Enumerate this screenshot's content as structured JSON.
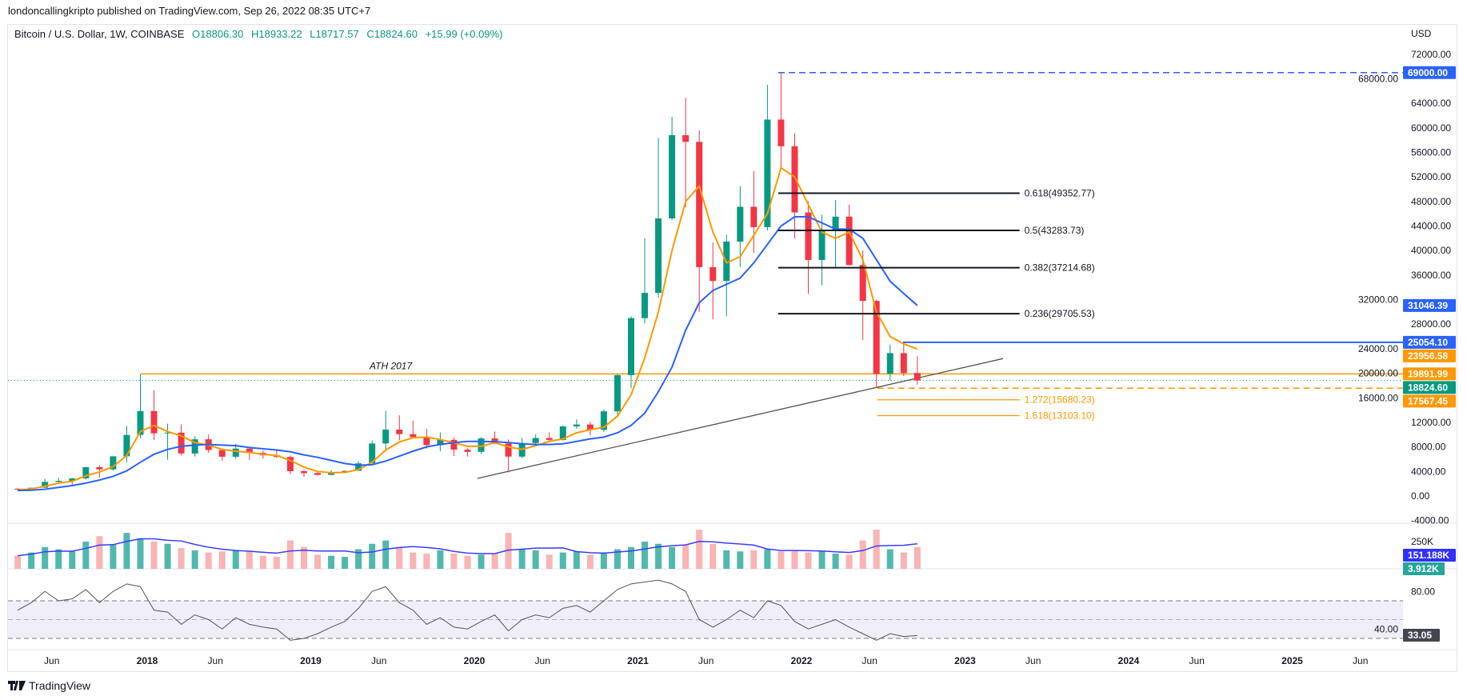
{
  "header": {
    "publisher_line": "londoncallingkripto published on TradingView.com, Sep 26, 2022 08:35 UTC+7",
    "symbol": "Bitcoin / U.S. Dollar, 1W, COINBASE",
    "open": "O18806.30",
    "high": "H18933.22",
    "low": "L18717.57",
    "close": "C18824.60",
    "change": "+15.99 (+0.09%)"
  },
  "footer": {
    "brand": "TradingView"
  },
  "colors": {
    "up": "#089981",
    "down": "#f23645",
    "ema_fast": "#ff9800",
    "ema_slow": "#2962ff",
    "volume_ma": "#3b3bff",
    "rsi": "#555555",
    "rsi_band": "#f0eef8",
    "fib": "#131722"
  },
  "chart_data": {
    "type": "candlestick",
    "currency": "USD",
    "y_ticks": [
      "72000.00",
      "68000.00",
      "64000.00",
      "60000.00",
      "56000.00",
      "52000.00",
      "48000.00",
      "44000.00",
      "40000.00",
      "36000.00",
      "32000.00",
      "28000.00",
      "24000.00",
      "20000.00",
      "16000.00",
      "12000.00",
      "8000.00",
      "4000.00",
      "0.00",
      "-4000.00"
    ],
    "ylim": [
      -4000,
      72000
    ],
    "x_ticks": [
      {
        "label": "Jun",
        "date": "2017-06-01"
      },
      {
        "label": "2018",
        "date": "2018-01-01"
      },
      {
        "label": "Jun",
        "date": "2018-06-01"
      },
      {
        "label": "2019",
        "date": "2019-01-01"
      },
      {
        "label": "Jun",
        "date": "2019-06-01"
      },
      {
        "label": "2020",
        "date": "2020-01-01"
      },
      {
        "label": "Jun",
        "date": "2020-06-01"
      },
      {
        "label": "2021",
        "date": "2021-01-01"
      },
      {
        "label": "Jun",
        "date": "2021-06-01"
      },
      {
        "label": "2022",
        "date": "2022-01-01"
      },
      {
        "label": "Jun",
        "date": "2022-06-01"
      },
      {
        "label": "2023",
        "date": "2023-01-01"
      },
      {
        "label": "Jun",
        "date": "2023-06-01"
      },
      {
        "label": "2024",
        "date": "2024-01-01"
      },
      {
        "label": "Jun",
        "date": "2024-06-01"
      },
      {
        "label": "2025",
        "date": "2025-01-01"
      },
      {
        "label": "Jun",
        "date": "2025-06-01"
      }
    ],
    "candles": [
      [
        "2017-03",
        1190,
        1290,
        890,
        1080
      ],
      [
        "2017-04",
        1080,
        1350,
        1080,
        1350
      ],
      [
        "2017-05",
        1350,
        2790,
        1350,
        2300
      ],
      [
        "2017-06",
        2300,
        3000,
        2100,
        2480
      ],
      [
        "2017-07",
        2480,
        2950,
        1830,
        2870
      ],
      [
        "2017-08",
        2870,
        4750,
        2670,
        4700
      ],
      [
        "2017-09",
        4700,
        5000,
        2970,
        4340
      ],
      [
        "2017-10",
        4340,
        6470,
        4110,
        6470
      ],
      [
        "2017-11",
        6470,
        11400,
        5500,
        9950
      ],
      [
        "2017-12",
        9950,
        19890,
        9400,
        13850
      ],
      [
        "2018-01",
        13850,
        17250,
        9100,
        10220
      ],
      [
        "2018-02",
        10220,
        11780,
        5900,
        10330
      ],
      [
        "2018-03",
        10330,
        11680,
        6600,
        6930
      ],
      [
        "2018-04",
        6930,
        9750,
        6420,
        9240
      ],
      [
        "2018-05",
        9240,
        10020,
        7030,
        7490
      ],
      [
        "2018-06",
        7490,
        7760,
        5750,
        6400
      ],
      [
        "2018-07",
        6400,
        8490,
        6070,
        7730
      ],
      [
        "2018-08",
        7730,
        7760,
        5880,
        7030
      ],
      [
        "2018-09",
        7030,
        7410,
        6100,
        6630
      ],
      [
        "2018-10",
        6630,
        7680,
        6200,
        6370
      ],
      [
        "2018-11",
        6370,
        6620,
        3550,
        4040
      ],
      [
        "2018-12",
        4040,
        4300,
        3130,
        3740
      ],
      [
        "2019-01",
        3740,
        4100,
        3350,
        3440
      ],
      [
        "2019-02",
        3440,
        4200,
        3380,
        3820
      ],
      [
        "2019-03",
        3820,
        4120,
        3680,
        4100
      ],
      [
        "2019-04",
        4100,
        5640,
        4090,
        5320
      ],
      [
        "2019-05",
        5320,
        9080,
        5310,
        8560
      ],
      [
        "2019-06",
        8560,
        13880,
        7450,
        10820
      ],
      [
        "2019-07",
        10820,
        13140,
        9070,
        10080
      ],
      [
        "2019-08",
        10080,
        12330,
        9320,
        9600
      ],
      [
        "2019-09",
        9600,
        10920,
        7710,
        8290
      ],
      [
        "2019-10",
        8290,
        10350,
        7300,
        9150
      ],
      [
        "2019-11",
        9150,
        9500,
        6520,
        7560
      ],
      [
        "2019-12",
        7560,
        7750,
        6430,
        7190
      ],
      [
        "2020-01",
        7190,
        9580,
        6850,
        9390
      ],
      [
        "2020-02",
        9390,
        10500,
        8450,
        8530
      ],
      [
        "2020-03",
        8530,
        9200,
        3850,
        6420
      ],
      [
        "2020-04",
        6420,
        9470,
        6150,
        8630
      ],
      [
        "2020-05",
        8630,
        10080,
        8110,
        9450
      ],
      [
        "2020-06",
        9450,
        10380,
        8900,
        9140
      ],
      [
        "2020-07",
        9140,
        11450,
        8980,
        11350
      ],
      [
        "2020-08",
        11350,
        12480,
        10980,
        11650
      ],
      [
        "2020-09",
        11650,
        12090,
        9880,
        10780
      ],
      [
        "2020-10",
        10780,
        14100,
        10420,
        13800
      ],
      [
        "2020-11",
        13800,
        19900,
        13200,
        19700
      ],
      [
        "2020-12",
        19700,
        29300,
        17570,
        28990
      ],
      [
        "2021-01",
        28990,
        41980,
        28130,
        33100
      ],
      [
        "2021-02",
        33100,
        58350,
        32300,
        45240
      ],
      [
        "2021-03",
        45240,
        61790,
        44960,
        58800
      ],
      [
        "2021-04",
        58800,
        64900,
        47040,
        57720
      ],
      [
        "2021-05",
        57720,
        59600,
        30000,
        37300
      ],
      [
        "2021-06",
        37300,
        41330,
        28800,
        35040
      ],
      [
        "2021-07",
        35040,
        42600,
        29280,
        41460
      ],
      [
        "2021-08",
        41460,
        50500,
        37330,
        47130
      ],
      [
        "2021-09",
        47130,
        52950,
        39600,
        43820
      ],
      [
        "2021-10",
        43820,
        67000,
        43290,
        61350
      ],
      [
        "2021-11",
        61350,
        69000,
        53260,
        57000
      ],
      [
        "2021-12",
        57000,
        59120,
        42000,
        46210
      ],
      [
        "2022-01",
        46210,
        47990,
        32930,
        38470
      ],
      [
        "2022-02",
        38470,
        45850,
        34320,
        43170
      ],
      [
        "2022-03",
        43170,
        48240,
        37170,
        45530
      ],
      [
        "2022-04",
        45530,
        47450,
        37560,
        37640
      ],
      [
        "2022-05",
        37640,
        40050,
        25400,
        31790
      ],
      [
        "2022-06",
        31790,
        31990,
        17570,
        19930
      ],
      [
        "2022-07",
        19930,
        24670,
        18780,
        23290
      ],
      [
        "2022-08",
        23290,
        25210,
        19540,
        20050
      ],
      [
        "2022-09",
        20050,
        22800,
        18150,
        18824.6
      ]
    ],
    "ema_fast": [
      1000,
      1150,
      1600,
      2100,
      2400,
      3300,
      3900,
      4800,
      6600,
      10500,
      11500,
      10500,
      9800,
      8700,
      8300,
      7600,
      7300,
      7100,
      6800,
      6600,
      5800,
      4700,
      4000,
      3800,
      3850,
      4300,
      5500,
      7500,
      8800,
      9500,
      9600,
      9200,
      8700,
      8100,
      8100,
      8700,
      8000,
      7600,
      8200,
      8900,
      9300,
      10300,
      10800,
      11200,
      13000,
      16500,
      22500,
      30000,
      40000,
      48000,
      50500,
      43000,
      38000,
      39000,
      42500,
      46000,
      53500,
      52000,
      47500,
      43000,
      42000,
      43000,
      38500,
      30000,
      26000,
      24800,
      23956.58
    ],
    "ema_slow": [
      900,
      950,
      1100,
      1400,
      1700,
      2100,
      2600,
      3200,
      4100,
      5500,
      6800,
      7600,
      8100,
      8300,
      8400,
      8300,
      8200,
      7900,
      7700,
      7500,
      7200,
      6700,
      6300,
      5800,
      5300,
      5000,
      5100,
      5700,
      6500,
      7300,
      8000,
      8400,
      8700,
      8900,
      8900,
      8850,
      8700,
      8500,
      8400,
      8400,
      8500,
      8900,
      9300,
      9600,
      10300,
      11500,
      13500,
      17000,
      21000,
      27000,
      31500,
      33500,
      34500,
      35500,
      38000,
      41000,
      44000,
      45500,
      45500,
      44500,
      43500,
      43500,
      42000,
      38500,
      35000,
      33000,
      31046.39
    ],
    "volume_k": [
      120,
      150,
      200,
      180,
      160,
      250,
      300,
      220,
      330,
      280,
      250,
      230,
      190,
      170,
      150,
      160,
      170,
      160,
      120,
      110,
      260,
      200,
      130,
      120,
      110,
      180,
      230,
      260,
      200,
      150,
      140,
      170,
      140,
      120,
      130,
      140,
      330,
      180,
      170,
      130,
      150,
      160,
      130,
      150,
      180,
      200,
      250,
      230,
      200,
      220,
      360,
      230,
      170,
      160,
      170,
      180,
      160,
      170,
      150,
      160,
      140,
      130,
      260,
      360,
      180,
      150,
      200
    ],
    "volume_ticks": [
      "250K"
    ],
    "rsi": [
      60,
      68,
      80,
      70,
      72,
      82,
      68,
      80,
      88,
      85,
      60,
      58,
      45,
      55,
      50,
      40,
      52,
      45,
      42,
      40,
      28,
      30,
      35,
      42,
      48,
      62,
      80,
      85,
      68,
      60,
      45,
      52,
      42,
      40,
      48,
      55,
      38,
      50,
      55,
      52,
      62,
      65,
      58,
      70,
      82,
      88,
      90,
      92,
      88,
      80,
      50,
      42,
      50,
      60,
      52,
      70,
      65,
      48,
      40,
      45,
      50,
      42,
      35,
      28,
      35,
      32,
      33.05
    ],
    "rsi_ticks": [
      "80.00",
      "40.00"
    ],
    "rsi_levels": [
      70,
      50,
      30
    ],
    "drawings": {
      "ath_2021": {
        "price": 69000,
        "from": "2021-11-10",
        "style": "dashed",
        "color": "#2962ff",
        "axis_label": "69000.00"
      },
      "fib_levels": [
        {
          "label": "0.618(49352.77)",
          "price": 49352.77
        },
        {
          "label": "0.5(43283.73)",
          "price": 43283.73
        },
        {
          "label": "0.382(37214.68)",
          "price": 37214.68
        },
        {
          "label": "0.236(29705.53)",
          "price": 29705.53
        }
      ],
      "fib_from": "2021-11-10",
      "fib_to": "2023-05-01",
      "fib_extensions": [
        {
          "label": "1.272(15680.23)",
          "price": 15680.23
        },
        {
          "label": "1.618(13103.10)",
          "price": 13103.1
        }
      ],
      "ext_from": "2022-06-18",
      "ext_to": "2023-05-01",
      "resistance": {
        "price": 25054.1,
        "from": "2022-08-15",
        "color": "#2962ff",
        "axis_label": "25054.10"
      },
      "ath_2017": {
        "price": 19891.99,
        "from": "2017-12-17",
        "color": "#ff9800",
        "text": "ATH 2017",
        "axis_label": "19891.99"
      },
      "support_dashed": {
        "price": 17567.45,
        "from": "2022-06-18",
        "color": "#ff9800",
        "axis_label": "17567.45"
      },
      "trendline": {
        "from": [
          "2020-01-08",
          2870
        ],
        "to": [
          "2023-03-25",
          22400
        ],
        "color": "#555555"
      }
    },
    "axis_labels": [
      {
        "text": "31046.39",
        "price": 31046.39,
        "color": "#2962ff"
      },
      {
        "text": "23956.58",
        "price": 23956.58,
        "color": "#ff9800",
        "dark": true
      },
      {
        "text": "18824.60",
        "price": 18824.6,
        "color": "#089981"
      }
    ],
    "volume_labels": [
      {
        "text": "151.188K",
        "color": "#3030ff"
      },
      {
        "text": "3.912K",
        "color": "#26a69a"
      }
    ],
    "rsi_label": {
      "text": "33.05",
      "color": "#434651"
    }
  }
}
